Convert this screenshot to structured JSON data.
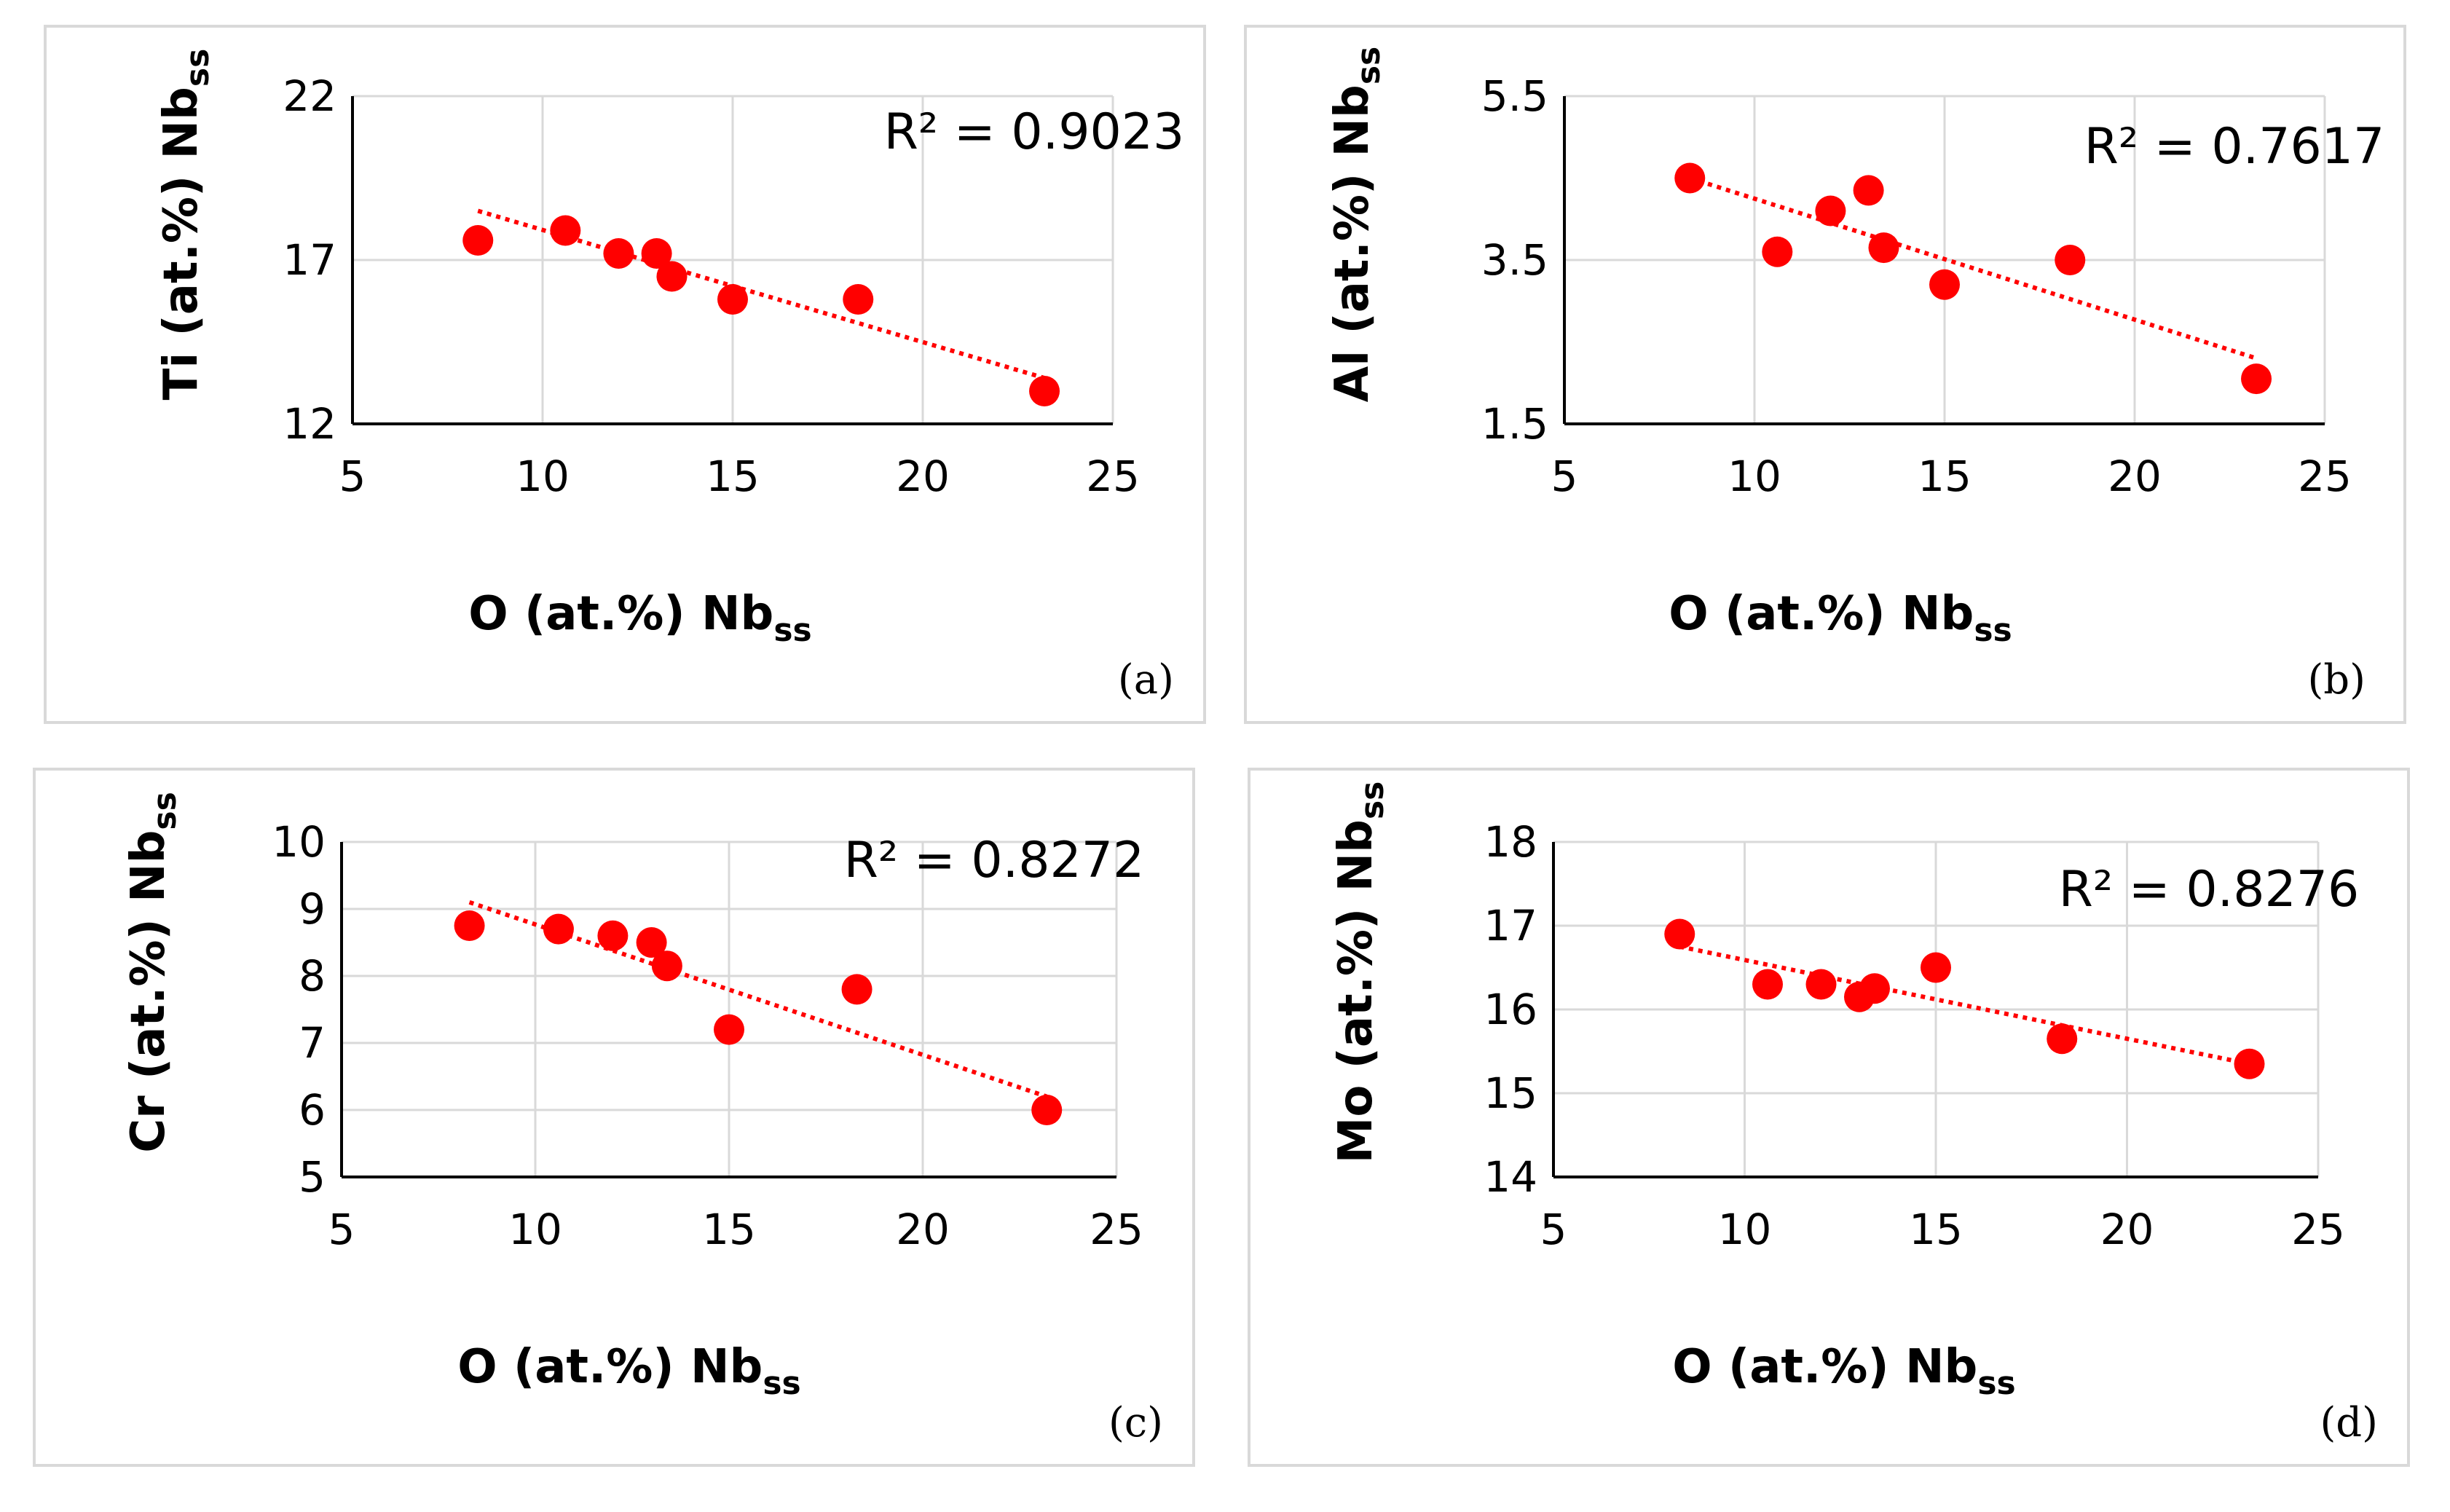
{
  "chart_data": [
    {
      "type": "scatter",
      "panel_label": "(a)",
      "xlabel": "O (at.%) Nb",
      "xlabel_sub": "ss",
      "ylabel": "Ti (at.%) Nb",
      "ylabel_sub": "ss",
      "xlim": [
        5,
        25
      ],
      "ylim": [
        12,
        22
      ],
      "xticks": [
        "5",
        "10",
        "15",
        "20",
        "25"
      ],
      "yticks": [
        "12",
        "17",
        "22"
      ],
      "grid": true,
      "trendline": {
        "type": "linear",
        "r2_label": "R² = 0.9023",
        "y_at_xmin": 18.5,
        "y_at_xmax": 13.4
      },
      "x": [
        8.3,
        10.6,
        12.0,
        13.0,
        13.4,
        15.0,
        18.3,
        23.2
      ],
      "y": [
        17.6,
        17.9,
        17.2,
        17.2,
        16.5,
        15.8,
        15.8,
        13.0
      ],
      "color": "#ff0000"
    },
    {
      "type": "scatter",
      "panel_label": "(b)",
      "xlabel": "O (at.%) Nb",
      "xlabel_sub": "ss",
      "ylabel": "Al (at.%) Nb",
      "ylabel_sub": "ss",
      "xlim": [
        5,
        25
      ],
      "ylim": [
        1.5,
        5.5
      ],
      "xticks": [
        "5",
        "10",
        "15",
        "20",
        "25"
      ],
      "yticks": [
        "1.5",
        "3.5",
        "5.5"
      ],
      "grid": true,
      "trendline": {
        "type": "linear",
        "r2_label": "R² = 0.7617",
        "y_at_xmin": 4.5,
        "y_at_xmax": 2.3
      },
      "x": [
        8.3,
        10.6,
        12.0,
        13.0,
        13.4,
        15.0,
        18.3,
        23.2
      ],
      "y": [
        4.5,
        3.6,
        4.1,
        4.35,
        3.65,
        3.2,
        3.5,
        2.05
      ],
      "color": "#ff0000"
    },
    {
      "type": "scatter",
      "panel_label": "(c)",
      "xlabel": "O (at.%) Nb",
      "xlabel_sub": "ss",
      "ylabel": "Cr (at.%) Nb",
      "ylabel_sub": "ss",
      "xlim": [
        5,
        25
      ],
      "ylim": [
        5,
        10
      ],
      "xticks": [
        "5",
        "10",
        "15",
        "20",
        "25"
      ],
      "yticks": [
        "5",
        "6",
        "7",
        "8",
        "9",
        "10"
      ],
      "grid": true,
      "trendline": {
        "type": "linear",
        "r2_label": "R² = 0.8272",
        "y_at_xmin": 9.1,
        "y_at_xmax": 6.2
      },
      "x": [
        8.3,
        10.6,
        12.0,
        13.0,
        13.4,
        15.0,
        18.3,
        23.2
      ],
      "y": [
        8.75,
        8.7,
        8.6,
        8.5,
        8.15,
        7.2,
        7.8,
        6.0
      ],
      "color": "#ff0000"
    },
    {
      "type": "scatter",
      "panel_label": "(d)",
      "xlabel": "O (at.%) Nb",
      "xlabel_sub": "ss",
      "ylabel": "Mo (at.%) Nb",
      "ylabel_sub": "ss",
      "xlim": [
        5,
        25
      ],
      "ylim": [
        14,
        18
      ],
      "xticks": [
        "5",
        "10",
        "15",
        "20",
        "25"
      ],
      "yticks": [
        "14",
        "15",
        "16",
        "17",
        "18"
      ],
      "grid": true,
      "trendline": {
        "type": "linear",
        "r2_label": "R² = 0.8276",
        "y_at_xmin": 16.75,
        "y_at_xmax": 15.35
      },
      "x": [
        8.3,
        10.6,
        12.0,
        13.0,
        13.4,
        15.0,
        18.3,
        23.2
      ],
      "y": [
        16.9,
        16.3,
        16.3,
        16.15,
        16.25,
        16.5,
        15.65,
        15.35
      ],
      "color": "#ff0000"
    }
  ]
}
